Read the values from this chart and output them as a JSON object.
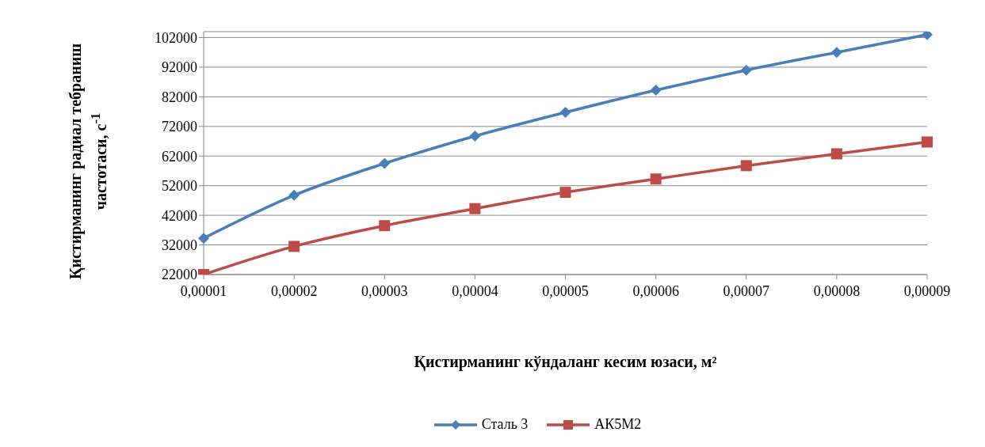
{
  "chart_data": {
    "type": "line",
    "xlabel": "Қистирманинг кўндаланг кесим юзаси, м²",
    "ylabel": "Қистирманинг радиал тебраниш частотаси, с$^{-1}$",
    "categories": [
      "0,00001",
      "0,00002",
      "0,00003",
      "0,00004",
      "0,00005",
      "0,00006",
      "0,00007",
      "0,00008",
      "0,00009"
    ],
    "series": [
      {
        "name": "Сталь 3",
        "color": "#4a7ebb",
        "marker": "diamond",
        "values": [
          34250,
          48750,
          59500,
          68750,
          76750,
          84250,
          91000,
          97000,
          103000
        ]
      },
      {
        "name": "АК5М2",
        "color": "#be4b48",
        "marker": "square",
        "values": [
          22000,
          31500,
          38500,
          44250,
          49750,
          54250,
          58750,
          62750,
          66750
        ]
      }
    ],
    "ylim": [
      22000,
      104000
    ],
    "yticks": [
      22000,
      32000,
      42000,
      52000,
      62000,
      72000,
      82000,
      92000,
      102000
    ],
    "grid": "y",
    "legend": "bottom"
  }
}
